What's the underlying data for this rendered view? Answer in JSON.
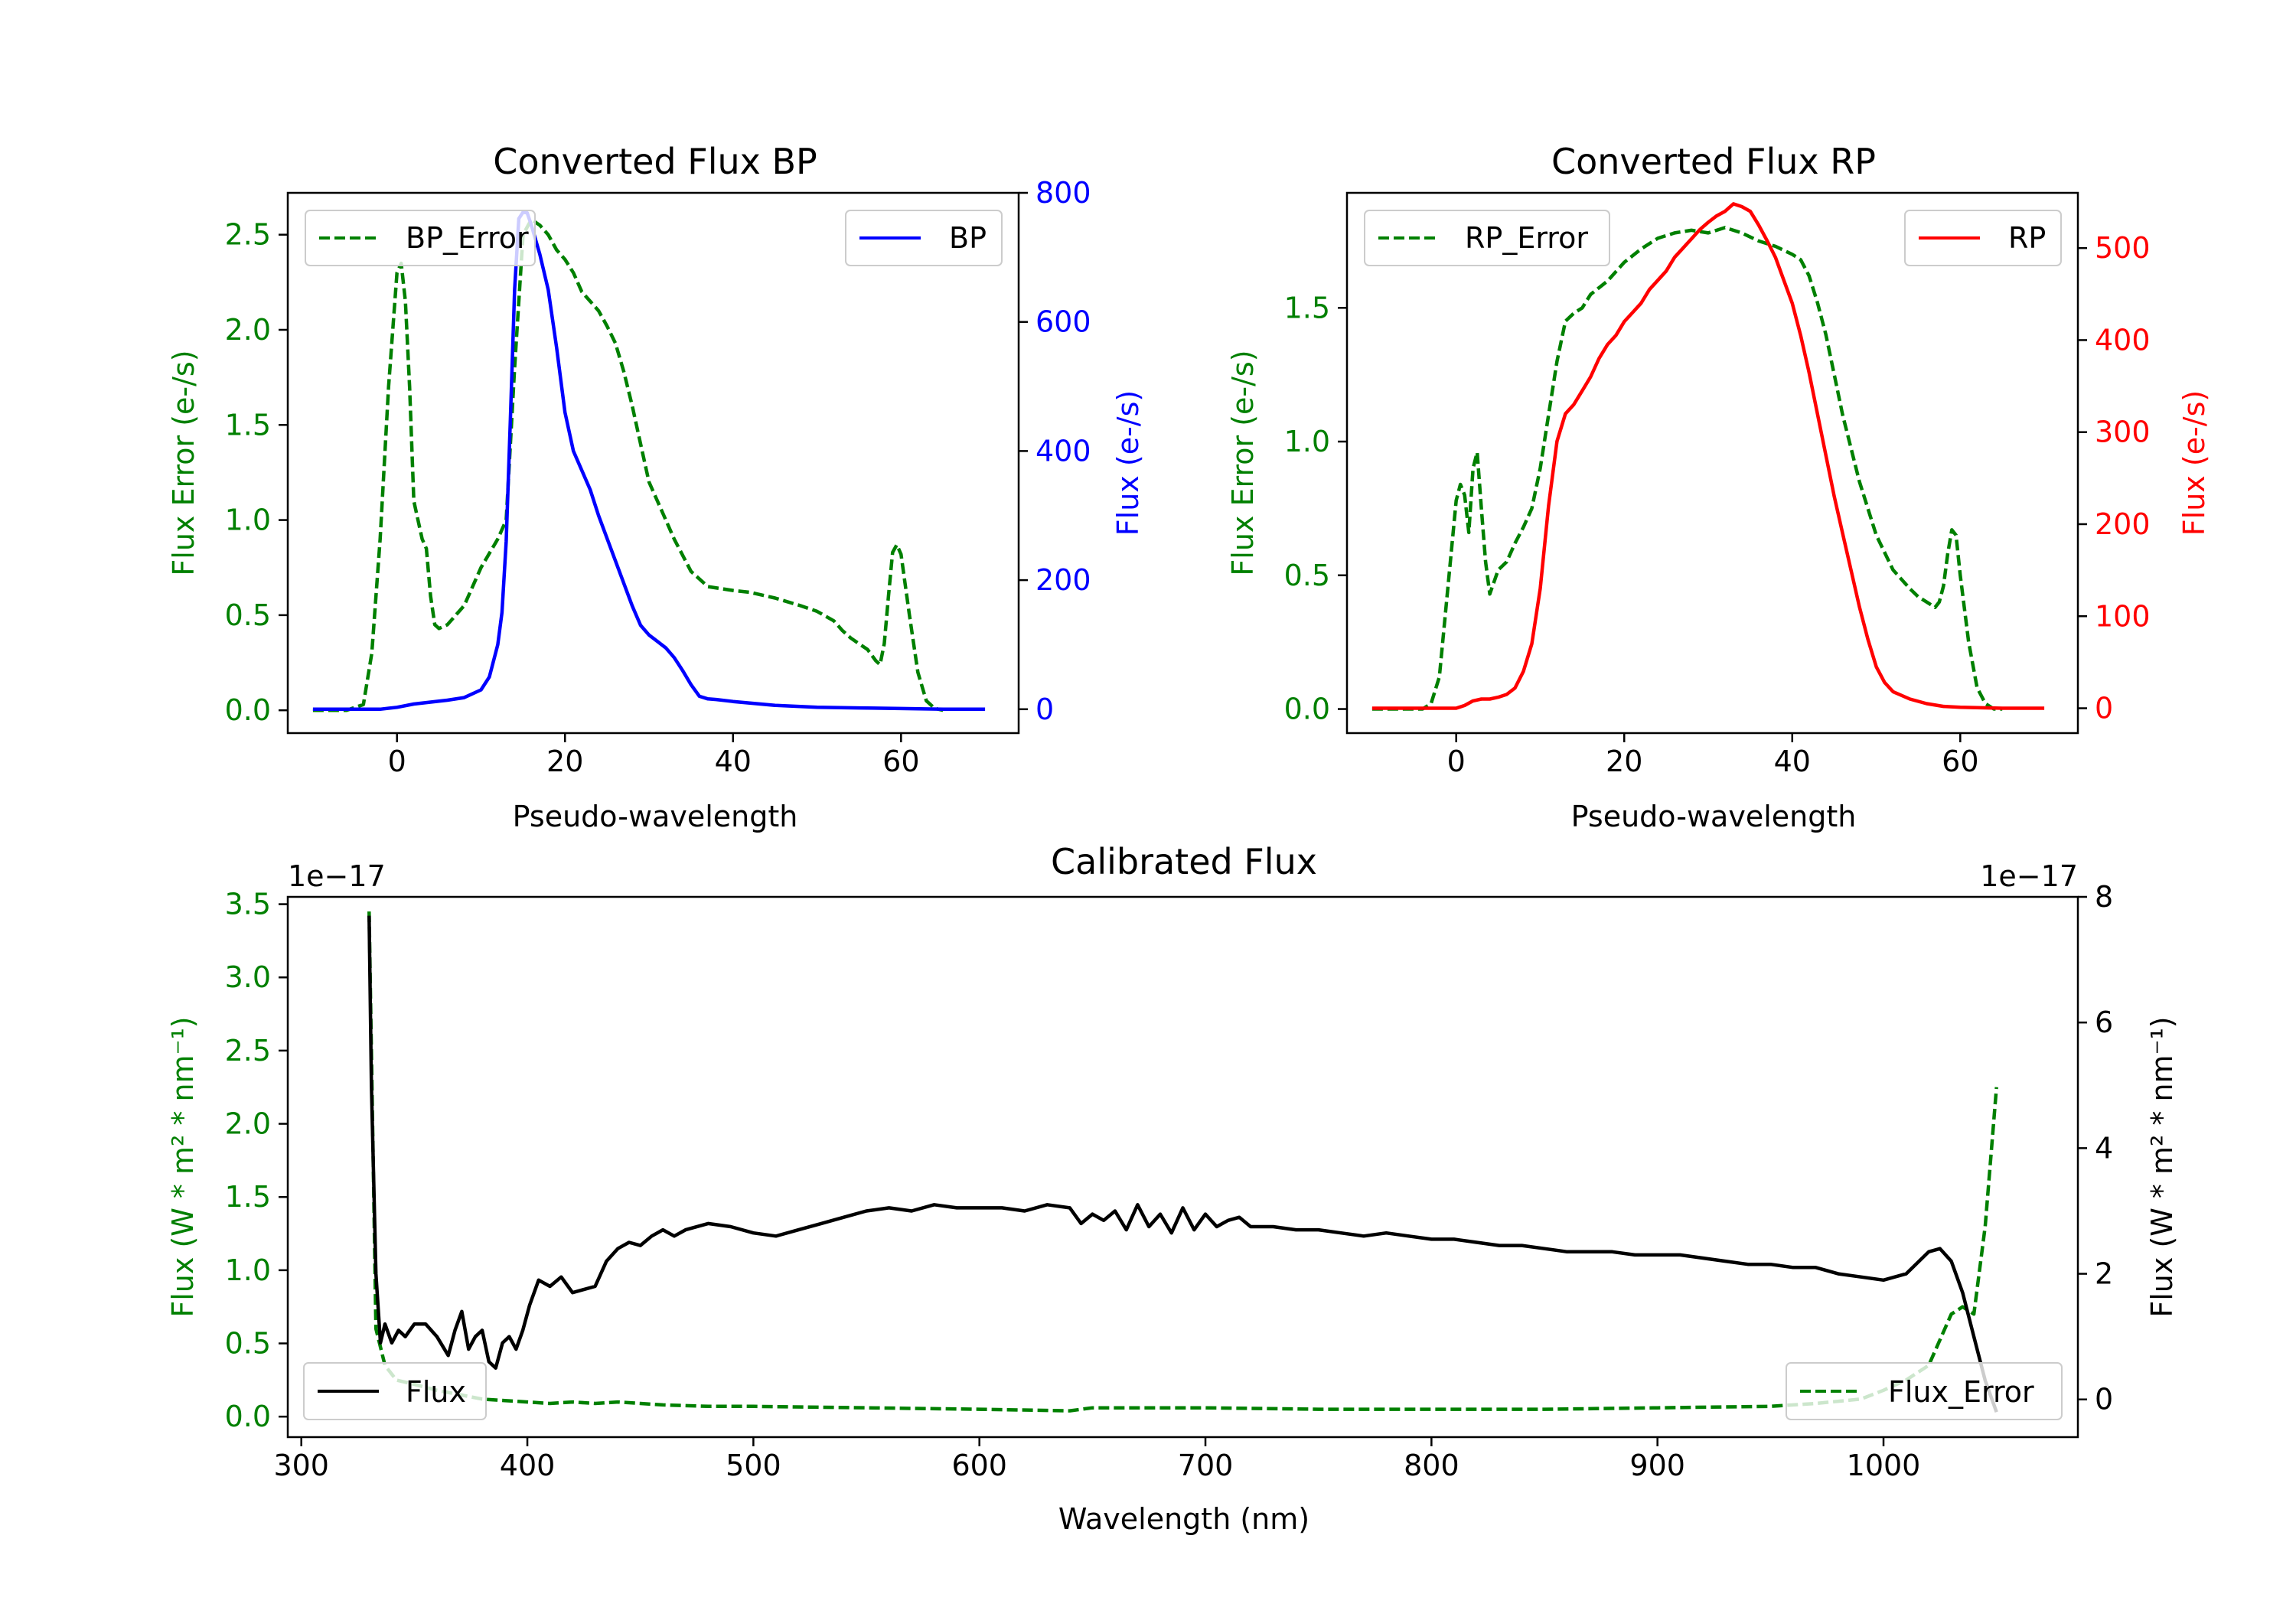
{
  "colors": {
    "bp": "#0000ff",
    "rp": "#ff0000",
    "error": "#008000",
    "flux": "#000000",
    "frame": "#000000"
  },
  "chart_data": [
    {
      "id": "bp",
      "type": "line",
      "title": "Converted Flux BP",
      "xlabel": "Pseudo-wavelength",
      "ylabel_left": "Flux Error (e-/s)",
      "ylabel_right": "Flux (e-/s)",
      "xlim": [
        -13,
        74
      ],
      "ylim_left": [
        -0.12,
        2.72
      ],
      "ylim_right": [
        -37,
        800
      ],
      "x_ticks": [
        0,
        20,
        40,
        60
      ],
      "y_ticks_left": [
        0.0,
        0.5,
        1.0,
        1.5,
        2.0,
        2.5
      ],
      "y_ticks_left_labels": [
        "0.0",
        "0.5",
        "1.0",
        "1.5",
        "2.0",
        "2.5"
      ],
      "y_ticks_right": [
        0,
        200,
        400,
        600,
        800
      ],
      "y_ticks_right_labels": [
        "0",
        "200",
        "400",
        "600",
        "800"
      ],
      "series": [
        {
          "name": "BP_Error",
          "axis": "left",
          "style": "dashed",
          "color": "error",
          "x": [
            -10,
            -6,
            -4,
            -3,
            -2,
            -1,
            0,
            0.5,
            1,
            1.5,
            2,
            3,
            3.5,
            4,
            4.5,
            5,
            6,
            7,
            8,
            10,
            12,
            13,
            14,
            15,
            16,
            17,
            18,
            19,
            20,
            21,
            22,
            23,
            24,
            25,
            26,
            27,
            28,
            29,
            30,
            31,
            32,
            33,
            35,
            37,
            40,
            42,
            45,
            48,
            50,
            52,
            53,
            54,
            55,
            56,
            57,
            57.5,
            58,
            58.5,
            59,
            59.5,
            60,
            61,
            62,
            63,
            64,
            65
          ],
          "y": [
            0.0,
            0.0,
            0.03,
            0.3,
            0.9,
            1.7,
            2.3,
            2.35,
            2.15,
            1.7,
            1.1,
            0.9,
            0.85,
            0.6,
            0.45,
            0.43,
            0.45,
            0.5,
            0.55,
            0.75,
            0.9,
            1.0,
            1.8,
            2.5,
            2.58,
            2.55,
            2.5,
            2.42,
            2.37,
            2.3,
            2.2,
            2.15,
            2.1,
            2.02,
            1.93,
            1.78,
            1.6,
            1.4,
            1.2,
            1.1,
            1.0,
            0.9,
            0.73,
            0.65,
            0.63,
            0.62,
            0.59,
            0.55,
            0.52,
            0.47,
            0.42,
            0.38,
            0.35,
            0.32,
            0.26,
            0.24,
            0.35,
            0.6,
            0.83,
            0.87,
            0.82,
            0.5,
            0.2,
            0.05,
            0.01,
            0.0
          ]
        },
        {
          "name": "BP",
          "axis": "right",
          "style": "solid",
          "color": "bp",
          "x": [
            -10,
            -2,
            0,
            2,
            4,
            6,
            8,
            10,
            11,
            12,
            12.5,
            13,
            13.5,
            14,
            14.5,
            15,
            15.5,
            16,
            17,
            18,
            19,
            20,
            21,
            22,
            23,
            24,
            25,
            26,
            27,
            28,
            29,
            30,
            31,
            32,
            33,
            34,
            35,
            36,
            37,
            38,
            40,
            45,
            50,
            55,
            60,
            65,
            70
          ],
          "y": [
            0,
            0,
            3,
            8,
            11,
            14,
            18,
            30,
            50,
            100,
            150,
            260,
            450,
            650,
            760,
            770,
            769,
            750,
            705,
            650,
            560,
            460,
            400,
            370,
            340,
            300,
            265,
            230,
            195,
            160,
            130,
            115,
            105,
            95,
            80,
            60,
            38,
            20,
            16,
            15,
            12,
            6,
            3,
            2,
            1,
            0,
            0
          ]
        }
      ],
      "legend_left": {
        "label": "BP_Error",
        "position": "upper left"
      },
      "legend_right": {
        "label": "BP",
        "position": "upper right"
      }
    },
    {
      "id": "rp",
      "type": "line",
      "title": "Converted Flux RP",
      "xlabel": "Pseudo-wavelength",
      "ylabel_left": "Flux Error (e-/s)",
      "ylabel_right": "Flux (e-/s)",
      "xlim": [
        -13,
        74
      ],
      "ylim_left": [
        -0.09,
        1.93
      ],
      "ylim_right": [
        -27,
        560
      ],
      "x_ticks": [
        0,
        20,
        40,
        60
      ],
      "y_ticks_left": [
        0.0,
        0.5,
        1.0,
        1.5
      ],
      "y_ticks_left_labels": [
        "0.0",
        "0.5",
        "1.0",
        "1.5"
      ],
      "y_ticks_right": [
        0,
        100,
        200,
        300,
        400,
        500
      ],
      "y_ticks_right_labels": [
        "0",
        "100",
        "200",
        "300",
        "400",
        "500"
      ],
      "series": [
        {
          "name": "RP_Error",
          "axis": "left",
          "style": "dashed",
          "color": "error",
          "x": [
            -10,
            -4,
            -3,
            -2,
            -1,
            0,
            0.5,
            1,
            1.5,
            2,
            2.5,
            3,
            3.5,
            4,
            5,
            6,
            7,
            8,
            9,
            10,
            11,
            12,
            13,
            14,
            15,
            16,
            18,
            20,
            22,
            24,
            26,
            28,
            30,
            32,
            34,
            36,
            38,
            40,
            41,
            42,
            43,
            44,
            45,
            46,
            48,
            50,
            52,
            54,
            55,
            56,
            57,
            57.5,
            58,
            58.5,
            59,
            59.5,
            60,
            61,
            62,
            63,
            64,
            65
          ],
          "y": [
            0.0,
            0.0,
            0.02,
            0.12,
            0.45,
            0.78,
            0.84,
            0.8,
            0.66,
            0.9,
            0.96,
            0.75,
            0.55,
            0.43,
            0.52,
            0.55,
            0.62,
            0.68,
            0.75,
            0.9,
            1.1,
            1.3,
            1.45,
            1.48,
            1.5,
            1.55,
            1.6,
            1.67,
            1.72,
            1.76,
            1.78,
            1.79,
            1.78,
            1.8,
            1.78,
            1.75,
            1.73,
            1.7,
            1.68,
            1.62,
            1.52,
            1.4,
            1.25,
            1.1,
            0.85,
            0.65,
            0.52,
            0.45,
            0.42,
            0.4,
            0.38,
            0.4,
            0.46,
            0.58,
            0.67,
            0.65,
            0.5,
            0.25,
            0.08,
            0.02,
            0.0,
            0.0
          ]
        },
        {
          "name": "RP",
          "axis": "right",
          "style": "solid",
          "color": "rp",
          "x": [
            -10,
            -2,
            0,
            1,
            2,
            3,
            4,
            5,
            6,
            7,
            8,
            9,
            10,
            11,
            12,
            13,
            14,
            15,
            16,
            17,
            18,
            19,
            20,
            21,
            22,
            23,
            24,
            25,
            26,
            27,
            28,
            29,
            30,
            31,
            32,
            33,
            34,
            35,
            36,
            37,
            38,
            39,
            40,
            41,
            42,
            43,
            44,
            45,
            46,
            47,
            48,
            49,
            50,
            51,
            52,
            54,
            56,
            58,
            60,
            65,
            70
          ],
          "y": [
            0,
            0,
            0,
            3,
            8,
            10,
            10,
            12,
            15,
            22,
            40,
            70,
            130,
            220,
            290,
            320,
            330,
            345,
            360,
            380,
            395,
            405,
            420,
            430,
            440,
            455,
            465,
            475,
            490,
            500,
            510,
            520,
            528,
            535,
            540,
            548,
            545,
            540,
            525,
            508,
            490,
            465,
            440,
            405,
            365,
            320,
            275,
            230,
            190,
            150,
            110,
            75,
            45,
            28,
            18,
            10,
            5,
            2,
            1,
            0,
            0
          ]
        }
      ],
      "legend_left": {
        "label": "RP_Error",
        "position": "upper left"
      },
      "legend_right": {
        "label": "RP",
        "position": "upper right"
      }
    },
    {
      "id": "calibrated",
      "type": "line",
      "title": "Calibrated Flux",
      "xlabel": "Wavelength (nm)",
      "ylabel_left": "Flux (W * m² * nm⁻¹)",
      "ylabel_right": "Flux (W * m² * nm⁻¹)",
      "offset_left": "1e−17",
      "offset_right": "1e−17",
      "xlim": [
        294,
        1086
      ],
      "ylim_left": [
        -0.14,
        3.55
      ],
      "ylim_right": [
        -0.6,
        8.0
      ],
      "x_ticks": [
        300,
        400,
        500,
        600,
        700,
        800,
        900,
        1000
      ],
      "y_ticks_left": [
        0.0,
        0.5,
        1.0,
        1.5,
        2.0,
        2.5,
        3.0,
        3.5
      ],
      "y_ticks_left_labels": [
        "0.0",
        "0.5",
        "1.0",
        "1.5",
        "2.0",
        "2.5",
        "3.0",
        "3.5"
      ],
      "y_ticks_right": [
        0,
        2,
        4,
        6,
        8
      ],
      "y_ticks_right_labels": [
        "0",
        "2",
        "4",
        "6",
        "8"
      ],
      "series": [
        {
          "name": "Flux_Error",
          "axis": "left",
          "style": "dashed",
          "color": "error",
          "x": [
            330,
            333,
            337,
            342,
            350,
            360,
            370,
            380,
            390,
            400,
            410,
            420,
            430,
            440,
            450,
            460,
            480,
            500,
            550,
            600,
            640,
            650,
            700,
            750,
            800,
            850,
            900,
            950,
            970,
            990,
            1000,
            1010,
            1020,
            1030,
            1035,
            1040,
            1045,
            1050
          ],
          "y": [
            3.45,
            0.6,
            0.35,
            0.25,
            0.22,
            0.18,
            0.15,
            0.12,
            0.11,
            0.1,
            0.09,
            0.1,
            0.09,
            0.1,
            0.09,
            0.08,
            0.07,
            0.07,
            0.06,
            0.05,
            0.04,
            0.06,
            0.06,
            0.05,
            0.05,
            0.05,
            0.06,
            0.07,
            0.09,
            0.12,
            0.18,
            0.25,
            0.35,
            0.7,
            0.75,
            0.7,
            1.3,
            2.25
          ]
        },
        {
          "name": "Flux",
          "axis": "right",
          "style": "solid",
          "color": "flux",
          "x": [
            330,
            331,
            333,
            335,
            337,
            340,
            343,
            346,
            350,
            355,
            360,
            365,
            368,
            371,
            374,
            377,
            380,
            383,
            386,
            389,
            392,
            395,
            398,
            401,
            405,
            410,
            415,
            420,
            425,
            430,
            435,
            440,
            445,
            450,
            455,
            460,
            465,
            470,
            480,
            490,
            500,
            510,
            520,
            530,
            540,
            550,
            560,
            570,
            580,
            590,
            600,
            610,
            620,
            630,
            640,
            645,
            650,
            655,
            660,
            665,
            670,
            675,
            680,
            685,
            690,
            695,
            700,
            705,
            710,
            715,
            720,
            730,
            740,
            750,
            760,
            770,
            780,
            790,
            800,
            810,
            820,
            830,
            840,
            850,
            860,
            870,
            880,
            890,
            900,
            910,
            920,
            930,
            940,
            950,
            960,
            970,
            980,
            990,
            1000,
            1010,
            1020,
            1025,
            1030,
            1035,
            1040,
            1045,
            1050
          ],
          "y": [
            7.7,
            5.0,
            2.0,
            0.9,
            1.2,
            0.9,
            1.1,
            1.0,
            1.2,
            1.2,
            1.0,
            0.7,
            1.1,
            1.4,
            0.8,
            1.0,
            1.1,
            0.6,
            0.5,
            0.9,
            1.0,
            0.8,
            1.1,
            1.5,
            1.9,
            1.8,
            1.95,
            1.7,
            1.75,
            1.8,
            2.2,
            2.4,
            2.5,
            2.45,
            2.6,
            2.7,
            2.6,
            2.7,
            2.8,
            2.75,
            2.65,
            2.6,
            2.7,
            2.8,
            2.9,
            3.0,
            3.05,
            3.0,
            3.1,
            3.05,
            3.05,
            3.05,
            3.0,
            3.1,
            3.05,
            2.8,
            2.95,
            2.85,
            3.0,
            2.7,
            3.1,
            2.75,
            2.95,
            2.65,
            3.05,
            2.7,
            2.95,
            2.75,
            2.85,
            2.9,
            2.75,
            2.75,
            2.7,
            2.7,
            2.65,
            2.6,
            2.65,
            2.6,
            2.55,
            2.55,
            2.5,
            2.45,
            2.45,
            2.4,
            2.35,
            2.35,
            2.35,
            2.3,
            2.3,
            2.3,
            2.25,
            2.2,
            2.15,
            2.15,
            2.1,
            2.1,
            2.0,
            1.95,
            1.9,
            2.0,
            2.35,
            2.4,
            2.2,
            1.7,
            1.0,
            0.3,
            -0.2
          ]
        }
      ],
      "legend_left": {
        "label": "Flux",
        "position": "lower left"
      },
      "legend_right": {
        "label": "Flux_Error",
        "position": "lower right"
      }
    }
  ]
}
